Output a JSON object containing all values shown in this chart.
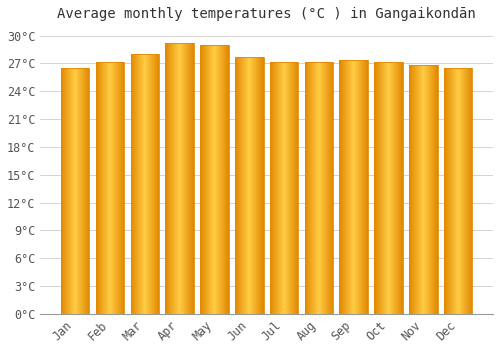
{
  "title": "Average monthly temperatures (°C ) in Gangaikondān",
  "months": [
    "Jan",
    "Feb",
    "Mar",
    "Apr",
    "May",
    "Jun",
    "Jul",
    "Aug",
    "Sep",
    "Oct",
    "Nov",
    "Dec"
  ],
  "values": [
    26.5,
    27.2,
    28.0,
    29.2,
    29.0,
    27.7,
    27.2,
    27.2,
    27.4,
    27.2,
    26.8,
    26.5
  ],
  "bar_color_center": "#FFCC44",
  "bar_color_edge": "#E08800",
  "background_color": "#FFFFFF",
  "grid_color": "#CCCCCC",
  "ytick_labels": [
    "0°C",
    "3°C",
    "6°C",
    "9°C",
    "12°C",
    "15°C",
    "18°C",
    "21°C",
    "24°C",
    "27°C",
    "30°C"
  ],
  "ytick_values": [
    0,
    3,
    6,
    9,
    12,
    15,
    18,
    21,
    24,
    27,
    30
  ],
  "ylim": [
    0,
    31
  ],
  "title_fontsize": 10,
  "tick_fontsize": 8.5,
  "figsize": [
    5.0,
    3.5
  ],
  "dpi": 100
}
